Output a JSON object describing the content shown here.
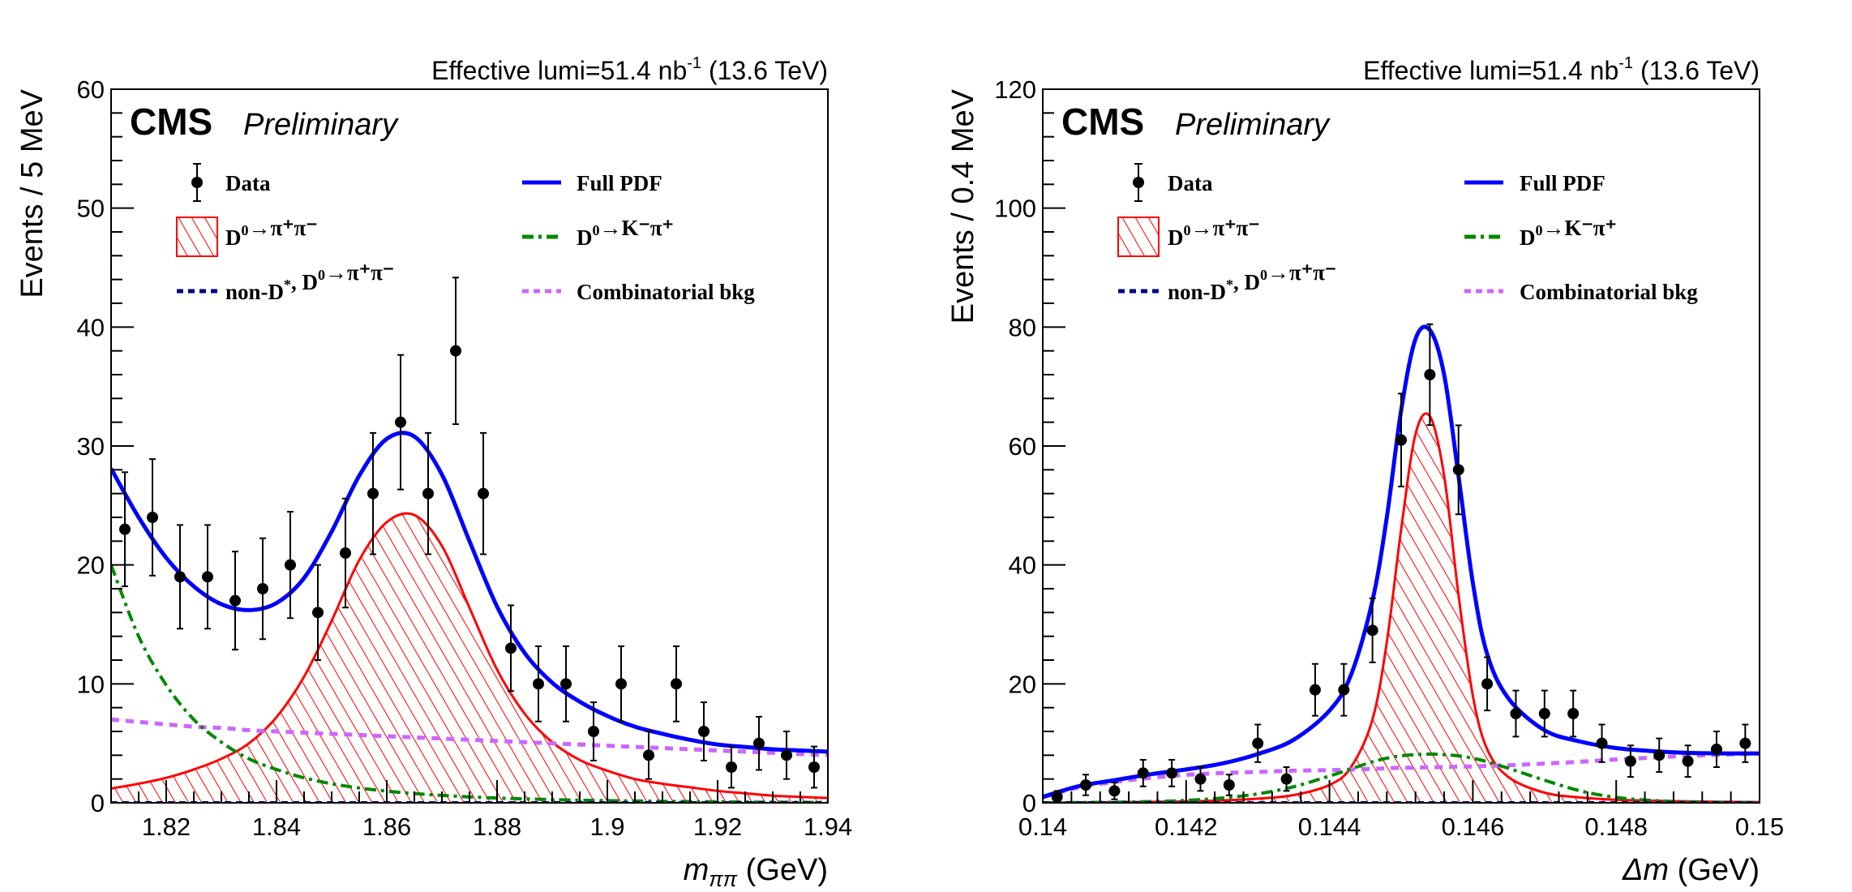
{
  "chart_data": [
    {
      "type": "scatter",
      "panel": "left",
      "title": "",
      "header_right": {
        "prefix": "Effective lumi=51.4 nb",
        "sup": "-1",
        "suffix": " (13.6 TeV)"
      },
      "cms_label": "CMS",
      "cms_extra": "Preliminary",
      "xlabel": {
        "main": "m",
        "sub": "ππ",
        "unit": " (GeV)"
      },
      "ylabel": "Events / 5 MeV",
      "xlim": [
        1.81,
        1.94
      ],
      "ylim": [
        0,
        60
      ],
      "xticks": [
        1.82,
        1.84,
        1.86,
        1.88,
        1.9,
        1.92,
        1.94
      ],
      "xtick_labels": [
        "1.82",
        "1.84",
        "1.86",
        "1.88",
        "1.9",
        "1.92",
        "1.94"
      ],
      "xminor_step": 0.005,
      "yticks": [
        0,
        10,
        20,
        30,
        40,
        50,
        60
      ],
      "ytick_labels": [
        "0",
        "10",
        "20",
        "30",
        "40",
        "50",
        "60"
      ],
      "yminor_step": 2,
      "data": {
        "x": [
          1.8125,
          1.8175,
          1.8225,
          1.8275,
          1.8325,
          1.8375,
          1.8425,
          1.8475,
          1.8525,
          1.8575,
          1.8625,
          1.8675,
          1.8725,
          1.8775,
          1.8825,
          1.8875,
          1.8925,
          1.8975,
          1.9025,
          1.9075,
          1.9125,
          1.9175,
          1.9225,
          1.9275,
          1.9325,
          1.9375
        ],
        "y": [
          23,
          24,
          19,
          19,
          17,
          18,
          20,
          16,
          21,
          26,
          32,
          26,
          38,
          26,
          13,
          10,
          10,
          6,
          10,
          4,
          10,
          6,
          3,
          5,
          4,
          3
        ]
      },
      "curves": {
        "x": [
          1.81,
          1.815,
          1.82,
          1.825,
          1.83,
          1.835,
          1.84,
          1.845,
          1.85,
          1.855,
          1.86,
          1.865,
          1.87,
          1.875,
          1.88,
          1.885,
          1.89,
          1.895,
          1.9,
          1.905,
          1.91,
          1.915,
          1.92,
          1.925,
          1.93,
          1.935,
          1.94
        ],
        "full_pdf": [
          28.1,
          24.0,
          20.6,
          18.2,
          16.7,
          16.2,
          16.8,
          18.9,
          22.8,
          27.5,
          30.6,
          30.8,
          27.6,
          22.0,
          16.5,
          12.6,
          10.1,
          8.5,
          7.3,
          6.4,
          5.8,
          5.3,
          4.9,
          4.7,
          4.5,
          4.4,
          4.3
        ],
        "signal": [
          1.2,
          1.6,
          2.1,
          2.8,
          3.7,
          5.0,
          7.2,
          10.6,
          15.3,
          20.4,
          23.6,
          24.2,
          21.6,
          16.4,
          11.2,
          7.5,
          5.1,
          3.6,
          2.7,
          2.0,
          1.6,
          1.3,
          1.0,
          0.8,
          0.6,
          0.5,
          0.4
        ],
        "kpi": [
          20.0,
          14.0,
          9.9,
          7.0,
          5.1,
          3.7,
          2.8,
          2.1,
          1.6,
          1.25,
          0.98,
          0.78,
          0.62,
          0.5,
          0.4,
          0.33,
          0.27,
          0.22,
          0.18,
          0.15,
          0.12,
          0.1,
          0.08,
          0.06,
          0.05,
          0.04,
          0.03
        ],
        "comb": [
          7.0,
          6.8,
          6.6,
          6.4,
          6.3,
          6.1,
          6.0,
          5.9,
          5.8,
          5.7,
          5.6,
          5.5,
          5.4,
          5.3,
          5.2,
          5.1,
          5.0,
          4.9,
          4.8,
          4.7,
          4.6,
          4.5,
          4.4,
          4.3,
          4.2,
          4.1,
          4.0
        ],
        "nonDstar": [
          0,
          0,
          0,
          0,
          0,
          0,
          0,
          0,
          0,
          0,
          0,
          0,
          0,
          0,
          0,
          0,
          0,
          0,
          0,
          0,
          0,
          0,
          0,
          0,
          0,
          0,
          0
        ]
      }
    },
    {
      "type": "scatter",
      "panel": "right",
      "title": "",
      "header_right": {
        "prefix": "Effective lumi=51.4 nb",
        "sup": "-1",
        "suffix": " (13.6 TeV)"
      },
      "cms_label": "CMS",
      "cms_extra": "Preliminary",
      "xlabel": {
        "main": "Δm",
        "sub": "",
        "unit": " (GeV)"
      },
      "ylabel": "Events / 0.4 MeV",
      "xlim": [
        0.14,
        0.15
      ],
      "ylim": [
        0,
        120
      ],
      "xticks": [
        0.14,
        0.142,
        0.144,
        0.146,
        0.148,
        0.15
      ],
      "xtick_labels": [
        "0.14",
        "0.142",
        "0.144",
        "0.146",
        "0.148",
        "0.15"
      ],
      "xminor_step": 0.0004,
      "yticks": [
        0,
        20,
        40,
        60,
        80,
        100,
        120
      ],
      "ytick_labels": [
        "0",
        "20",
        "40",
        "60",
        "80",
        "100",
        "120"
      ],
      "yminor_step": 4,
      "data": {
        "x": [
          0.1402,
          0.1406,
          0.141,
          0.1414,
          0.1418,
          0.1422,
          0.1426,
          0.143,
          0.1434,
          0.1438,
          0.1442,
          0.1446,
          0.145,
          0.1454,
          0.1458,
          0.1462,
          0.1466,
          0.147,
          0.1474,
          0.1478,
          0.1482,
          0.1486,
          0.149,
          0.1494,
          0.1498
        ],
        "y": [
          1,
          3,
          2,
          5,
          5,
          4,
          3,
          10,
          4,
          19,
          19,
          29,
          61,
          72,
          56,
          20,
          15,
          15,
          15,
          10,
          7,
          8,
          7,
          9,
          10
        ]
      },
      "curves": {
        "x": [
          0.14,
          0.1405,
          0.141,
          0.1415,
          0.142,
          0.1425,
          0.143,
          0.1435,
          0.144,
          0.1443,
          0.1446,
          0.1448,
          0.145,
          0.1452,
          0.1454,
          0.1456,
          0.1458,
          0.146,
          0.1462,
          0.1465,
          0.147,
          0.1475,
          0.148,
          0.1485,
          0.149,
          0.1495,
          0.15
        ],
        "full_pdf": [
          1.0,
          2.8,
          3.8,
          4.8,
          5.6,
          6.6,
          8.2,
          10.6,
          15.5,
          21.5,
          34,
          48,
          66,
          78,
          79.5,
          72,
          55,
          37,
          25,
          17.5,
          12.2,
          10.3,
          9.2,
          8.7,
          8.4,
          8.3,
          8.3
        ],
        "signal": [
          0,
          0.05,
          0.1,
          0.15,
          0.25,
          0.4,
          0.7,
          1.3,
          3.0,
          6.0,
          14,
          27,
          46,
          62,
          65,
          55,
          35,
          18,
          9,
          4.3,
          1.7,
          0.9,
          0.5,
          0.35,
          0.25,
          0.18,
          0.12
        ],
        "kpi": [
          0,
          0.05,
          0.1,
          0.2,
          0.4,
          0.8,
          1.5,
          2.7,
          4.5,
          5.7,
          6.9,
          7.5,
          7.9,
          8.1,
          8.2,
          8.1,
          7.9,
          7.5,
          6.9,
          5.8,
          3.8,
          2.0,
          0.9,
          0.4,
          0.15,
          0.05,
          0.02
        ],
        "comb": [
          0.9,
          2.6,
          3.5,
          4.2,
          4.7,
          5.0,
          5.2,
          5.4,
          5.5,
          5.6,
          5.7,
          5.8,
          5.9,
          5.9,
          6.0,
          6.0,
          6.1,
          6.1,
          6.2,
          6.3,
          6.6,
          6.9,
          7.3,
          7.6,
          7.9,
          8.1,
          8.3
        ],
        "nonDstar": [
          0,
          0,
          0,
          0,
          0,
          0,
          0,
          0,
          0,
          0,
          0,
          0,
          0,
          0,
          0,
          0,
          0,
          0,
          0,
          0,
          0,
          0,
          0,
          0,
          0,
          0,
          0
        ]
      }
    }
  ],
  "legend": {
    "items": [
      {
        "key": "data",
        "label": "Data",
        "style": "marker"
      },
      {
        "key": "full_pdf",
        "label": "Full PDF",
        "style": "solid",
        "color": "#0000ff"
      },
      {
        "key": "signal",
        "label": "D⁰→π⁺π⁻",
        "label_parts": {
          "base": "D",
          "sup1": "0",
          "rest": "→π⁺π⁻"
        },
        "style": "hatched",
        "color": "#ff0000"
      },
      {
        "key": "kpi",
        "label": "D⁰→K⁻π⁺",
        "label_parts": {
          "base": "D",
          "sup1": "0",
          "rest": "→K⁻π⁺"
        },
        "style": "dashdot",
        "color": "#008800"
      },
      {
        "key": "nonDstar",
        "label": "non-D*, D⁰→π⁺π⁻",
        "label_parts": {
          "base": "non-D",
          "sup1": "*",
          "rest": ", D",
          "sup2": "0",
          "rest2": "→π⁺π⁻"
        },
        "style": "dotted",
        "color": "#000080"
      },
      {
        "key": "comb",
        "label": "Combinatorial bkg",
        "style": "dotted",
        "color": "#cc66ff"
      }
    ]
  },
  "colors": {
    "full_pdf": "#0000ff",
    "signal": "#ff0000",
    "kpi": "#008800",
    "nonDstar": "#000080",
    "comb": "#cc66ff",
    "data": "#000000"
  }
}
